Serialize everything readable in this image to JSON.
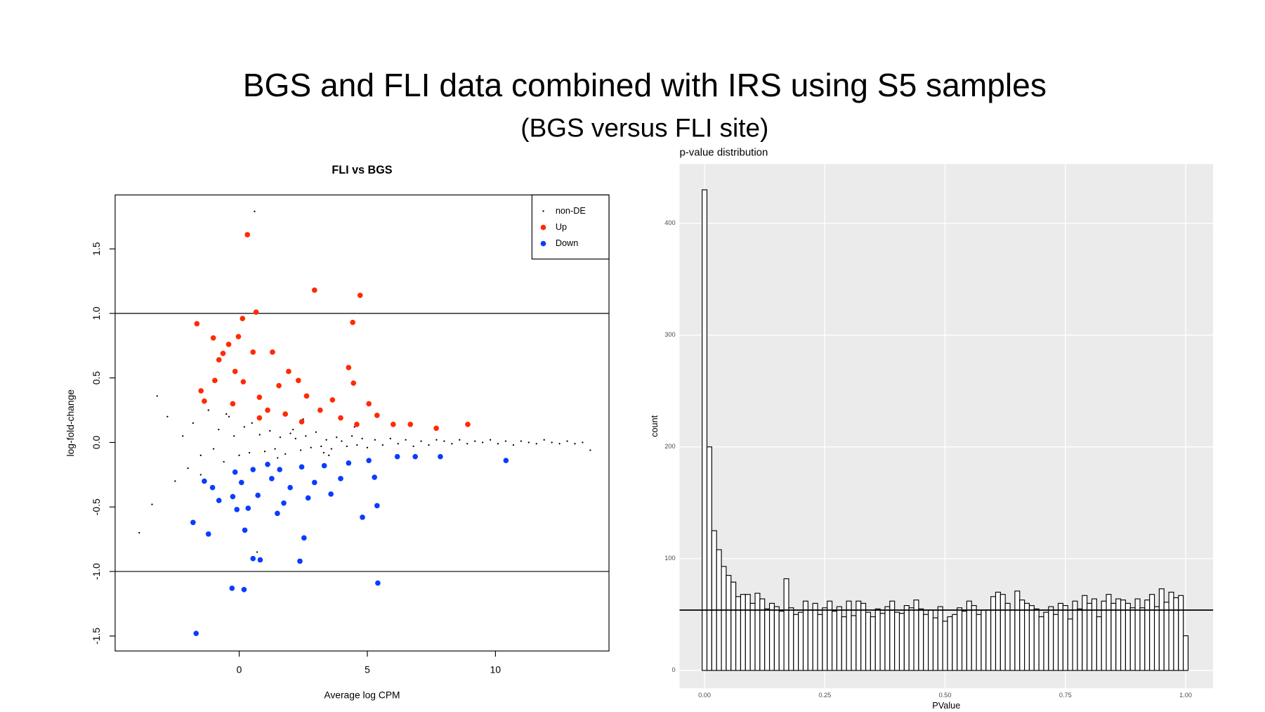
{
  "slide": {
    "title": "BGS and FLI data combined with IRS using S5 samples",
    "subtitle": "(BGS versus FLI site)"
  },
  "chart_data": [
    {
      "type": "scatter",
      "title": "FLI vs BGS",
      "xlabel": "Average log CPM",
      "ylabel": "log-fold-change",
      "xlim": [
        -4.84,
        14.43
      ],
      "ylim": [
        -1.616,
        1.918
      ],
      "xticks": [
        0,
        5,
        10
      ],
      "yticks": [
        {
          "value": -1.5,
          "label": "-1.5"
        },
        {
          "value": -1,
          "label": "-1.0"
        },
        {
          "value": -0.5,
          "label": "-0.5"
        },
        {
          "value": 0,
          "label": "0.0"
        },
        {
          "value": 0.5,
          "label": "0.5"
        },
        {
          "value": 1,
          "label": "1.0"
        },
        {
          "value": 1.5,
          "label": "1.5"
        }
      ],
      "hlines": [
        -1,
        1
      ],
      "legend": "top-right",
      "series": [
        {
          "name": "non-DE",
          "color": "#000000",
          "x": [
            -3.9,
            -3.4,
            -3.2,
            -2.8,
            -2.5,
            -2.2,
            -2.0,
            -1.8,
            -1.5,
            -1.2,
            -1.0,
            -0.8,
            -0.6,
            -0.4,
            -0.2,
            0,
            0.2,
            0.4,
            0.6,
            0.8,
            1,
            1.2,
            1.4,
            1.6,
            1.8,
            2,
            2.2,
            2.4,
            2.6,
            2.8,
            3,
            3.2,
            3.4,
            3.6,
            3.8,
            4,
            4.2,
            4.4,
            4.6,
            4.8,
            5,
            5.3,
            5.6,
            5.9,
            6.2,
            6.5,
            6.8,
            7.1,
            7.4,
            7.7,
            8,
            8.3,
            8.6,
            8.9,
            9.2,
            9.5,
            9.8,
            10.1,
            10.4,
            10.7,
            11,
            11.3,
            11.6,
            11.9,
            12.2,
            12.5,
            12.8,
            13.1,
            13.4,
            13.7,
            0.5,
            1.5,
            2.5,
            3.5,
            4.5,
            -0.5,
            -1.5,
            0.7,
            2.1,
            3.3
          ],
          "values": [
            -0.7,
            -0.48,
            0.36,
            0.2,
            -0.3,
            0.05,
            -0.2,
            0.15,
            -0.1,
            0.25,
            -0.05,
            0.1,
            -0.15,
            0.2,
            0.05,
            -0.1,
            0.12,
            -0.08,
            1.79,
            0.06,
            -0.07,
            0.09,
            -0.05,
            0.04,
            -0.09,
            0.07,
            0.03,
            -0.06,
            0.05,
            -0.04,
            0.08,
            -0.03,
            0.02,
            -0.05,
            0.04,
            0.01,
            -0.03,
            0.05,
            -0.02,
            0.03,
            -0.04,
            0.02,
            -0.02,
            0.03,
            -0.01,
            0.02,
            -0.03,
            0.01,
            -0.02,
            0.02,
            0.01,
            -0.01,
            0.02,
            -0.01,
            0.01,
            0.0,
            0.02,
            -0.01,
            0.01,
            -0.02,
            0.01,
            0.0,
            -0.01,
            0.02,
            0.0,
            -0.01,
            0.01,
            -0.01,
            0.0,
            -0.06,
            0.15,
            -0.12,
            0.18,
            -0.1,
            0.12,
            0.22,
            -0.25,
            -0.85,
            0.1,
            -0.08
          ]
        },
        {
          "name": "Up",
          "color": "#ff2a00",
          "x": [
            0.32,
            2.94,
            4.72,
            0.66,
            -1.65,
            0.13,
            4.43,
            -1.01,
            -0.03,
            -0.41,
            0.54,
            1.3,
            -0.63,
            -0.79,
            4.27,
            -0.16,
            1.93,
            -0.95,
            0.16,
            2.31,
            -1.49,
            1.55,
            4.46,
            -1.36,
            -0.25,
            0.79,
            2.63,
            3.64,
            5.06,
            1.11,
            1.8,
            3.16,
            3.96,
            5.38,
            6.01,
            6.68,
            7.69,
            8.92,
            0.79,
            2.44,
            4.59
          ],
          "values": [
            1.61,
            1.18,
            1.14,
            1.01,
            0.92,
            0.96,
            0.93,
            0.81,
            0.82,
            0.76,
            0.7,
            0.7,
            0.69,
            0.64,
            0.58,
            0.55,
            0.55,
            0.48,
            0.47,
            0.48,
            0.4,
            0.44,
            0.46,
            0.32,
            0.3,
            0.35,
            0.36,
            0.33,
            0.3,
            0.25,
            0.22,
            0.25,
            0.19,
            0.21,
            0.14,
            0.14,
            0.11,
            0.14,
            0.19,
            0.16,
            0.14
          ]
        },
        {
          "name": "Down",
          "color": "#0a3cff",
          "x": [
            -1.68,
            5.41,
            -0.28,
            0.19,
            2.37,
            0.54,
            0.82,
            -1.8,
            -1.2,
            2.53,
            0.22,
            4.81,
            5.38,
            10.41,
            -0.79,
            -0.09,
            0.35,
            1.49,
            1.74,
            2.69,
            3.58,
            -0.25,
            0.73,
            -1.36,
            -1.04,
            0.09,
            1.27,
            1.99,
            2.94,
            3.96,
            5.28,
            -0.16,
            0.54,
            1.58,
            2.44,
            3.32,
            4.27,
            5.06,
            6.17,
            6.87,
            7.85,
            1.11
          ],
          "values": [
            -1.48,
            -1.09,
            -1.13,
            -1.14,
            -0.92,
            -0.9,
            -0.91,
            -0.62,
            -0.71,
            -0.74,
            -0.68,
            -0.58,
            -0.49,
            -0.14,
            -0.45,
            -0.52,
            -0.51,
            -0.55,
            -0.47,
            -0.43,
            -0.4,
            -0.42,
            -0.41,
            -0.3,
            -0.35,
            -0.31,
            -0.28,
            -0.35,
            -0.31,
            -0.28,
            -0.27,
            -0.23,
            -0.21,
            -0.21,
            -0.19,
            -0.18,
            -0.16,
            -0.14,
            -0.11,
            -0.11,
            -0.11,
            -0.17
          ]
        }
      ]
    },
    {
      "type": "histogram",
      "title": "p-value distribution",
      "xlabel": "PValue",
      "ylabel": "count",
      "xlim": [
        -0.052,
        1.057
      ],
      "ylim": [
        -16,
        453
      ],
      "xticks": [
        {
          "value": 0,
          "label": "0.00"
        },
        {
          "value": 0.25,
          "label": "0.25"
        },
        {
          "value": 0.5,
          "label": "0.50"
        },
        {
          "value": 0.75,
          "label": "0.75"
        },
        {
          "value": 1,
          "label": "1.00"
        }
      ],
      "yticks": [
        0,
        100,
        200,
        300,
        400
      ],
      "grid": true,
      "hline": 54,
      "color": "#ffffff",
      "bins": [
        -0.005,
        0.005,
        0.015,
        0.025,
        0.035,
        0.045,
        0.055,
        0.065,
        0.075,
        0.085,
        0.095,
        0.105,
        0.115,
        0.125,
        0.135,
        0.145,
        0.155,
        0.165,
        0.175,
        0.185,
        0.195,
        0.205,
        0.215,
        0.225,
        0.235,
        0.245,
        0.255,
        0.265,
        0.275,
        0.285,
        0.295,
        0.305,
        0.315,
        0.325,
        0.335,
        0.345,
        0.355,
        0.365,
        0.375,
        0.385,
        0.395,
        0.405,
        0.415,
        0.425,
        0.435,
        0.445,
        0.455,
        0.465,
        0.475,
        0.485,
        0.495,
        0.505,
        0.515,
        0.525,
        0.535,
        0.545,
        0.555,
        0.565,
        0.575,
        0.585,
        0.595,
        0.605,
        0.615,
        0.625,
        0.635,
        0.645,
        0.655,
        0.665,
        0.675,
        0.685,
        0.695,
        0.705,
        0.715,
        0.725,
        0.735,
        0.745,
        0.755,
        0.765,
        0.775,
        0.785,
        0.795,
        0.805,
        0.815,
        0.825,
        0.835,
        0.845,
        0.855,
        0.865,
        0.875,
        0.885,
        0.895,
        0.905,
        0.915,
        0.925,
        0.935,
        0.945,
        0.955,
        0.965,
        0.975,
        0.985,
        0.995,
        1.005
      ],
      "counts": [
        430,
        200,
        125,
        108,
        93,
        85,
        79,
        66,
        68,
        68,
        60,
        69,
        64,
        55,
        60,
        57,
        53,
        82,
        56,
        50,
        52,
        62,
        54,
        60,
        50,
        56,
        62,
        53,
        57,
        48,
        62,
        49,
        62,
        60,
        52,
        48,
        55,
        51,
        57,
        62,
        52,
        51,
        58,
        56,
        63,
        55,
        50,
        54,
        47,
        57,
        44,
        48,
        50,
        56,
        53,
        62,
        58,
        50,
        54,
        54,
        66,
        70,
        68,
        60,
        54,
        71,
        63,
        60,
        58,
        55,
        48,
        52,
        57,
        50,
        60,
        58,
        46,
        62,
        55,
        67,
        60,
        64,
        48,
        62,
        68,
        60,
        64,
        63,
        60,
        56,
        64,
        56,
        63,
        68,
        57,
        73,
        61,
        70,
        65,
        67,
        31
      ]
    }
  ]
}
